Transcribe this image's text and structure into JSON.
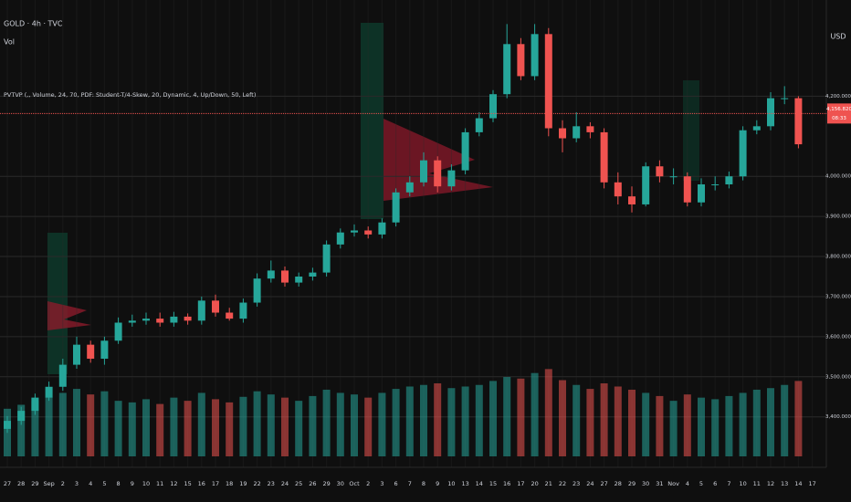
{
  "chart_data": {
    "type": "candlestick",
    "symbol": "GOLD · 4h · TVC",
    "volume_label": "Vol",
    "indicator": "PVTVP (,, Volume, 24, 70, PDF: Student-T/4-Skew, 20, Dynamic, 4, Up/Down, 50, Left)",
    "currency": "USD",
    "categories": [
      "27",
      "28",
      "29",
      "Sep",
      "2",
      "3",
      "4",
      "5",
      "8",
      "9",
      "10",
      "11",
      "12",
      "15",
      "16",
      "17",
      "18",
      "19",
      "22",
      "23",
      "24",
      "25",
      "26",
      "29",
      "30",
      "Oct",
      "2",
      "3",
      "6",
      "7",
      "8",
      "9",
      "10",
      "13",
      "14",
      "15",
      "16",
      "17",
      "20",
      "21",
      "22",
      "23",
      "24",
      "27",
      "28",
      "29",
      "30",
      "31",
      "Nov",
      "4",
      "5",
      "6",
      "7",
      "10",
      "11",
      "12",
      "13",
      "14",
      "17"
    ],
    "open": [
      3370,
      3390,
      3415,
      3448,
      3475,
      3530,
      3580,
      3545,
      3590,
      3635,
      3640,
      3645,
      3635,
      3650,
      3640,
      3690,
      3660,
      3645,
      3685,
      3745,
      3765,
      3735,
      3750,
      3760,
      3830,
      3860,
      3865,
      3855,
      3885,
      3960,
      3985,
      4040,
      3975,
      4015,
      4110,
      4145,
      4205,
      4330,
      4250,
      4355,
      4120,
      4095,
      4125,
      4110,
      3985,
      3950,
      3930,
      4025,
      4000,
      4000,
      3935,
      3980,
      3980,
      4000,
      4115,
      4125,
      4195,
      4195,
      null
    ],
    "high": [
      3402,
      3425,
      3458,
      3488,
      3545,
      3600,
      3590,
      3600,
      3648,
      3655,
      3660,
      3660,
      3662,
      3658,
      3700,
      3705,
      3672,
      3695,
      3758,
      3790,
      3775,
      3760,
      3772,
      3840,
      3870,
      3880,
      3875,
      3895,
      3970,
      4000,
      4060,
      4050,
      4030,
      4120,
      4160,
      4215,
      4380,
      4345,
      4380,
      4370,
      4140,
      4160,
      4135,
      4120,
      4010,
      3975,
      4035,
      4040,
      4020,
      4010,
      3995,
      4000,
      4012,
      4125,
      4140,
      4210,
      4225,
      4200,
      null
    ],
    "low": [
      3360,
      3380,
      3405,
      3440,
      3465,
      3520,
      3535,
      3530,
      3582,
      3625,
      3630,
      3625,
      3625,
      3630,
      3630,
      3650,
      3640,
      3635,
      3675,
      3735,
      3725,
      3725,
      3740,
      3750,
      3820,
      3850,
      3845,
      3845,
      3875,
      3950,
      3975,
      3960,
      3965,
      4005,
      4100,
      4135,
      4195,
      4240,
      4240,
      4100,
      4060,
      4085,
      4095,
      3970,
      3930,
      3910,
      3925,
      3985,
      3980,
      3925,
      3925,
      3965,
      3970,
      3990,
      4105,
      4115,
      4180,
      4070,
      null
    ],
    "close": [
      3390,
      3415,
      3448,
      3475,
      3530,
      3580,
      3545,
      3590,
      3635,
      3640,
      3645,
      3635,
      3650,
      3640,
      3690,
      3660,
      3645,
      3685,
      3745,
      3765,
      3735,
      3750,
      3760,
      3830,
      3860,
      3865,
      3855,
      3885,
      3960,
      3985,
      4040,
      3975,
      4015,
      4110,
      4145,
      4205,
      4330,
      4250,
      4355,
      4120,
      4095,
      4125,
      4110,
      3985,
      3950,
      3930,
      4025,
      4000,
      4000,
      3935,
      3980,
      3980,
      4000,
      4115,
      4125,
      4195,
      4195,
      4080,
      null
    ],
    "volume": [
      60,
      65,
      70,
      75,
      80,
      85,
      78,
      82,
      70,
      68,
      72,
      66,
      74,
      70,
      80,
      72,
      68,
      75,
      82,
      78,
      74,
      70,
      76,
      84,
      80,
      78,
      74,
      80,
      85,
      88,
      90,
      92,
      86,
      88,
      90,
      95,
      100,
      98,
      105,
      110,
      96,
      90,
      85,
      92,
      88,
      84,
      80,
      76,
      70,
      78,
      74,
      72,
      76,
      80,
      84,
      86,
      90,
      95,
      null
    ],
    "up_color": "#26a69a",
    "down_color": "#ef5350",
    "ylim": [
      3290,
      4440
    ],
    "yticks": [
      {
        "value": 3400,
        "label": "3,400.000"
      },
      {
        "value": 3500,
        "label": "3,500.000"
      },
      {
        "value": 3600,
        "label": "3,600.000"
      },
      {
        "value": 3700,
        "label": "3,700.000"
      },
      {
        "value": 3800,
        "label": "3,800.000"
      },
      {
        "value": 3900,
        "label": "3,900.000"
      },
      {
        "value": 4000,
        "label": "4,000.000"
      },
      {
        "value": 4200,
        "label": "4,200.000"
      }
    ],
    "volume_ylim": [
      0,
      115
    ],
    "last_price": {
      "value": 4156.82,
      "label": "4,156.820"
    },
    "countdown": "08:33",
    "grid": true
  }
}
